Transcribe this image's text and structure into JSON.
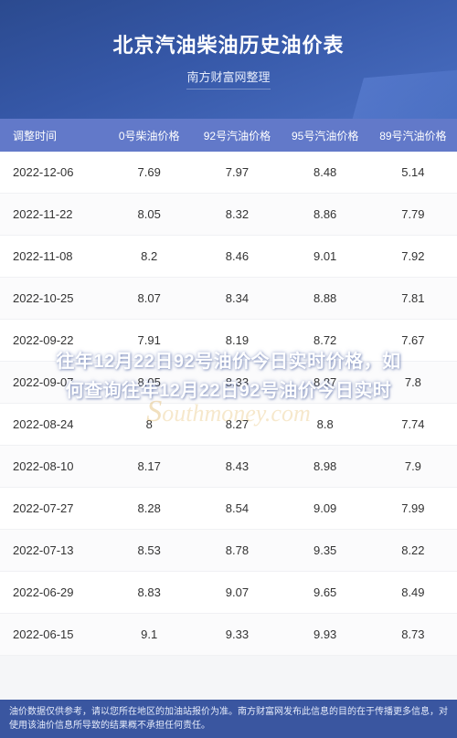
{
  "header": {
    "title": "北京汽油柴油历史油价表",
    "subtitle": "南方财富网整理",
    "bg_start": "#2b4a8f",
    "bg_end": "#4a6fc2",
    "title_color": "#ffffff",
    "title_fontsize": 22
  },
  "table": {
    "type": "table",
    "header_bg": "#6279c9",
    "header_text_color": "#ffffff",
    "row_bg": "#ffffff",
    "row_alt_bg": "#fbfbfc",
    "text_color": "#333333",
    "fontsize": 13,
    "columns": [
      "调整时间",
      "0号柴油价格",
      "92号汽油价格",
      "95号汽油价格",
      "89号汽油价格"
    ],
    "rows": [
      [
        "2022-12-06",
        "7.69",
        "7.97",
        "8.48",
        "5.14"
      ],
      [
        "2022-11-22",
        "8.05",
        "8.32",
        "8.86",
        "7.79"
      ],
      [
        "2022-11-08",
        "8.2",
        "8.46",
        "9.01",
        "7.92"
      ],
      [
        "2022-10-25",
        "8.07",
        "8.34",
        "8.88",
        "7.81"
      ],
      [
        "2022-09-22",
        "7.91",
        "8.19",
        "8.72",
        "7.67"
      ],
      [
        "2022-09-07",
        "8.05",
        "8.33",
        "8.87",
        "7.8"
      ],
      [
        "2022-08-24",
        "8",
        "8.27",
        "8.8",
        "7.74"
      ],
      [
        "2022-08-10",
        "8.17",
        "8.43",
        "8.98",
        "7.9"
      ],
      [
        "2022-07-27",
        "8.28",
        "8.54",
        "9.09",
        "7.99"
      ],
      [
        "2022-07-13",
        "8.53",
        "8.78",
        "9.35",
        "8.22"
      ],
      [
        "2022-06-29",
        "8.83",
        "9.07",
        "9.65",
        "8.49"
      ],
      [
        "2022-06-15",
        "9.1",
        "9.33",
        "9.93",
        "8.73"
      ]
    ]
  },
  "overlay": {
    "line1": "往年12月22日92号油价今日实时价格，如",
    "line2": "何查询往年12月22日92号油价今日实时",
    "color": "#ffffff",
    "fontsize": 20
  },
  "watermark": {
    "text_prefix": "S",
    "text_main": "outhmoney.com",
    "color": "#e8c070"
  },
  "footer": {
    "text": "油价数据仅供参考，请以您所在地区的加油站报价为准。南方财富网发布此信息的目的在于传播更多信息，对使用该油价信息所导致的结果概不承担任何责任。",
    "bg": "#3a56a0",
    "text_color": "#e6ecfb",
    "fontsize": 10
  }
}
